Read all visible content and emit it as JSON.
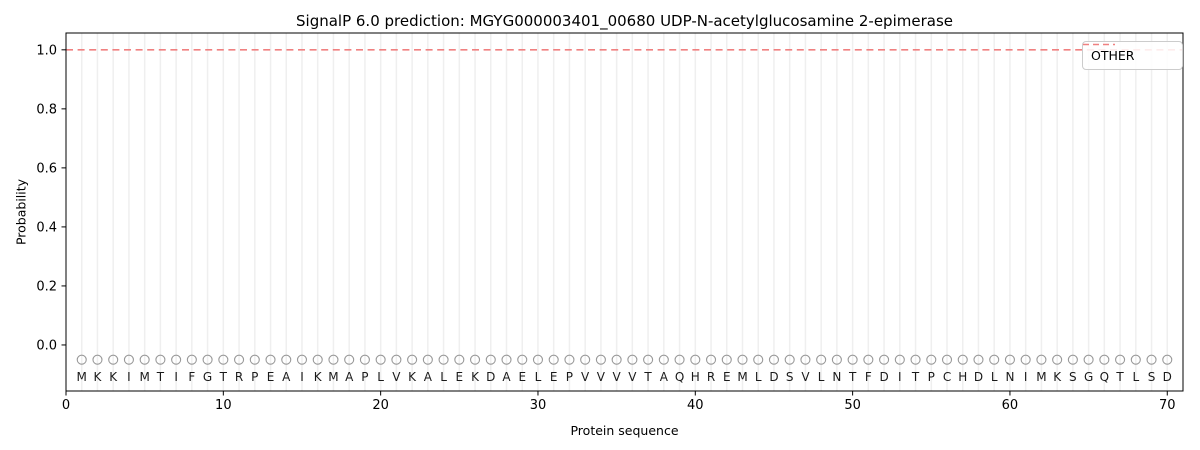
{
  "chart": {
    "title": "SignalP 6.0 prediction: MGYG000003401_00680 UDP-N-acetylglucosamine 2-epimerase",
    "xlabel": "Protein sequence",
    "ylabel": "Probability",
    "legend": [
      {
        "label": "OTHER"
      }
    ]
  },
  "chart_data": {
    "type": "line",
    "title": "SignalP 6.0 prediction: MGYG000003401_00680 UDP-N-acetylglucosamine 2-epimerase",
    "xlabel": "Protein sequence",
    "ylabel": "Probability",
    "xlim": [
      0,
      71
    ],
    "ylim": [
      -0.156,
      1.057
    ],
    "xticks": [
      0,
      10,
      20,
      30,
      40,
      50,
      60,
      70
    ],
    "yticks": [
      0.0,
      0.2,
      0.4,
      0.6,
      0.8,
      1.0
    ],
    "grid": "vertical-line-per-residue",
    "legend_position": "upper right",
    "sequence": "MKKIMTIFGTRPEAIKMAPLVKALEKDAELEPVVVVTAQHREMLDSVLNTFDITPCHDLNIMKSGQTLSD",
    "sequence_positions": [
      1,
      70
    ],
    "sequence_marker_y": -0.05,
    "series": [
      {
        "name": "OTHER",
        "linestyle": "dashed",
        "color": "#f08080",
        "constant_y": 1.0,
        "x_start": 1,
        "x_end": 70
      }
    ],
    "colors": {
      "other_line": "#f08080",
      "grid": "#efefef",
      "marker_stroke": "#999999",
      "letter": "#1a1a1a",
      "axis": "#000000",
      "legend_border": "#cccccc"
    }
  }
}
